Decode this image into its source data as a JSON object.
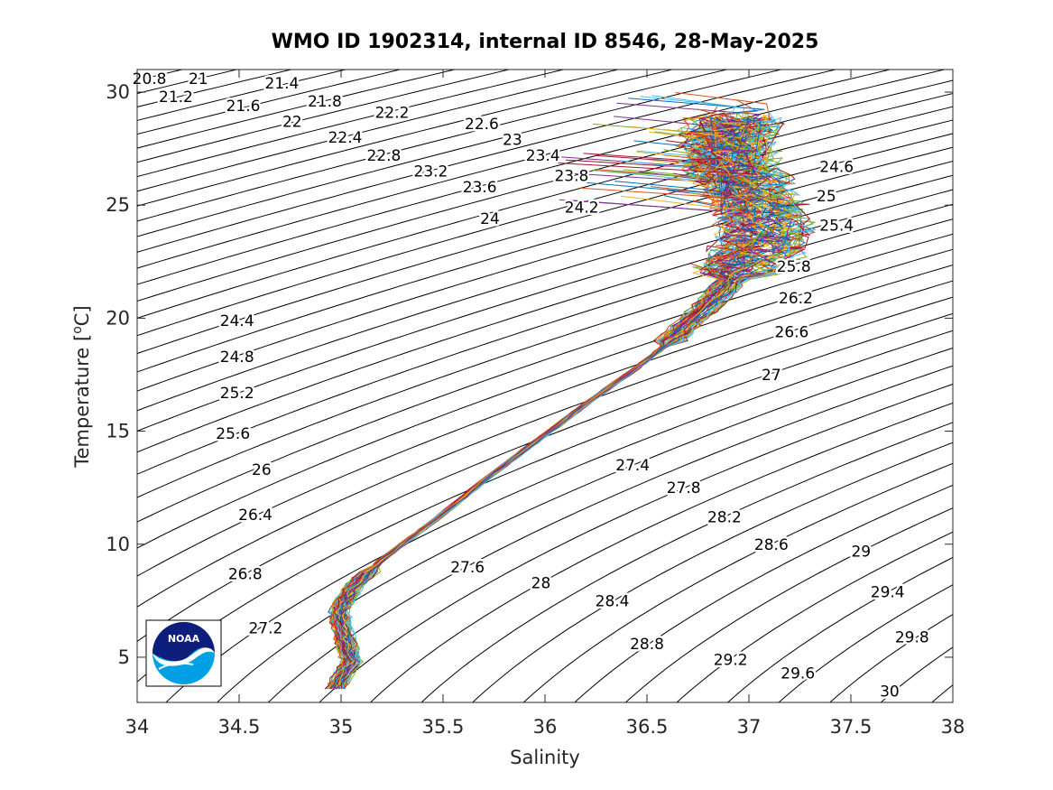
{
  "chart_data": {
    "type": "line",
    "title": "WMO ID 1902314, internal ID 8546, 28-May-2025",
    "xlabel": "Salinity",
    "ylabel_main": "Temperature [",
    "ylabel_sup": "o",
    "ylabel_end": "C]",
    "xlim": [
      34,
      38
    ],
    "ylim": [
      3,
      31
    ],
    "x_ticks": [
      "34",
      "34.5",
      "35",
      "35.5",
      "36",
      "36.5",
      "37",
      "37.5",
      "38"
    ],
    "y_ticks": [
      "5",
      "10",
      "15",
      "20",
      "25",
      "30"
    ],
    "x_tick_values": [
      34,
      34.5,
      35,
      35.5,
      36,
      36.5,
      37,
      37.5,
      38
    ],
    "y_tick_values": [
      5,
      10,
      15,
      20,
      25,
      30
    ],
    "isopycnal_labels": [
      {
        "text": "20.8",
        "s": 34.06,
        "t": 30.6
      },
      {
        "text": "21",
        "s": 34.3,
        "t": 30.6
      },
      {
        "text": "21.2",
        "s": 34.19,
        "t": 29.8
      },
      {
        "text": "21.4",
        "s": 34.71,
        "t": 30.4
      },
      {
        "text": "21.6",
        "s": 34.52,
        "t": 29.4
      },
      {
        "text": "21.8",
        "s": 34.92,
        "t": 29.6
      },
      {
        "text": "22",
        "s": 34.76,
        "t": 28.7
      },
      {
        "text": "22.2",
        "s": 35.25,
        "t": 29.1
      },
      {
        "text": "22.4",
        "s": 35.02,
        "t": 28.0
      },
      {
        "text": "22.6",
        "s": 35.69,
        "t": 28.6
      },
      {
        "text": "22.8",
        "s": 35.21,
        "t": 27.2
      },
      {
        "text": "23",
        "s": 35.84,
        "t": 27.9
      },
      {
        "text": "23.2",
        "s": 35.44,
        "t": 26.5
      },
      {
        "text": "23.4",
        "s": 35.99,
        "t": 27.2
      },
      {
        "text": "23.6",
        "s": 35.68,
        "t": 25.8
      },
      {
        "text": "23.8",
        "s": 36.13,
        "t": 26.3
      },
      {
        "text": "24",
        "s": 35.73,
        "t": 24.4
      },
      {
        "text": "24.2",
        "s": 36.18,
        "t": 24.9
      },
      {
        "text": "24.4",
        "s": 34.49,
        "t": 19.9
      },
      {
        "text": "24.6",
        "s": 37.43,
        "t": 26.7
      },
      {
        "text": "24.8",
        "s": 34.49,
        "t": 18.3
      },
      {
        "text": "25",
        "s": 37.38,
        "t": 25.4
      },
      {
        "text": "25.2",
        "s": 34.49,
        "t": 16.7
      },
      {
        "text": "25.4",
        "s": 37.43,
        "t": 24.1
      },
      {
        "text": "25.6",
        "s": 34.47,
        "t": 14.9
      },
      {
        "text": "25.8",
        "s": 37.22,
        "t": 22.3
      },
      {
        "text": "26",
        "s": 34.61,
        "t": 13.3
      },
      {
        "text": "26.2",
        "s": 37.23,
        "t": 20.9
      },
      {
        "text": "26.4",
        "s": 34.58,
        "t": 11.3
      },
      {
        "text": "26.6",
        "s": 37.21,
        "t": 19.4
      },
      {
        "text": "26.8",
        "s": 34.53,
        "t": 8.7
      },
      {
        "text": "27",
        "s": 37.11,
        "t": 17.5
      },
      {
        "text": "27.2",
        "s": 34.63,
        "t": 6.3
      },
      {
        "text": "27.4",
        "s": 36.43,
        "t": 13.5
      },
      {
        "text": "27.6",
        "s": 35.62,
        "t": 9.0
      },
      {
        "text": "27.8",
        "s": 36.68,
        "t": 12.5
      },
      {
        "text": "28",
        "s": 35.98,
        "t": 8.3
      },
      {
        "text": "28.2",
        "s": 36.88,
        "t": 11.2
      },
      {
        "text": "28.4",
        "s": 36.33,
        "t": 7.5
      },
      {
        "text": "28.6",
        "s": 37.11,
        "t": 10.0
      },
      {
        "text": "28.8",
        "s": 36.5,
        "t": 5.6
      },
      {
        "text": "29",
        "s": 37.55,
        "t": 9.7
      },
      {
        "text": "29.2",
        "s": 36.91,
        "t": 4.9
      },
      {
        "text": "29.4",
        "s": 37.68,
        "t": 7.9
      },
      {
        "text": "29.6",
        "s": 37.24,
        "t": 4.3
      },
      {
        "text": "29.8",
        "s": 37.8,
        "t": 5.9
      },
      {
        "text": "30",
        "s": 37.69,
        "t": 3.5
      }
    ],
    "profile_backbone": [
      {
        "s": 34.97,
        "t": 3.6
      },
      {
        "s": 35.05,
        "t": 4.8
      },
      {
        "s": 35.02,
        "t": 5.8
      },
      {
        "s": 34.99,
        "t": 7.0
      },
      {
        "s": 35.05,
        "t": 8.0
      },
      {
        "s": 35.2,
        "t": 9.3
      },
      {
        "s": 35.45,
        "t": 11.0
      },
      {
        "s": 35.7,
        "t": 12.8
      },
      {
        "s": 35.95,
        "t": 14.5
      },
      {
        "s": 36.2,
        "t": 16.2
      },
      {
        "s": 36.45,
        "t": 17.8
      },
      {
        "s": 36.62,
        "t": 19.0
      },
      {
        "s": 36.8,
        "t": 20.6
      },
      {
        "s": 36.95,
        "t": 22.0
      },
      {
        "s": 37.05,
        "t": 23.0
      },
      {
        "s": 37.08,
        "t": 24.0
      },
      {
        "s": 37.05,
        "t": 25.0
      },
      {
        "s": 36.98,
        "t": 26.0
      },
      {
        "s": 36.9,
        "t": 27.0
      },
      {
        "s": 36.9,
        "t": 28.0
      },
      {
        "s": 36.95,
        "t": 29.0
      }
    ],
    "profile_count": 60,
    "series_colors": [
      "#0072BD",
      "#D95319",
      "#EDB120",
      "#7E2F8E",
      "#77AC30",
      "#4DBEEE",
      "#A2142F"
    ],
    "grid": false,
    "legend": "none"
  },
  "logo": {
    "name": "noaa-logo",
    "text": "NOAA",
    "colors": {
      "navy": "#0d1f7a",
      "cyan": "#00a0e6",
      "white": "#ffffff"
    }
  }
}
